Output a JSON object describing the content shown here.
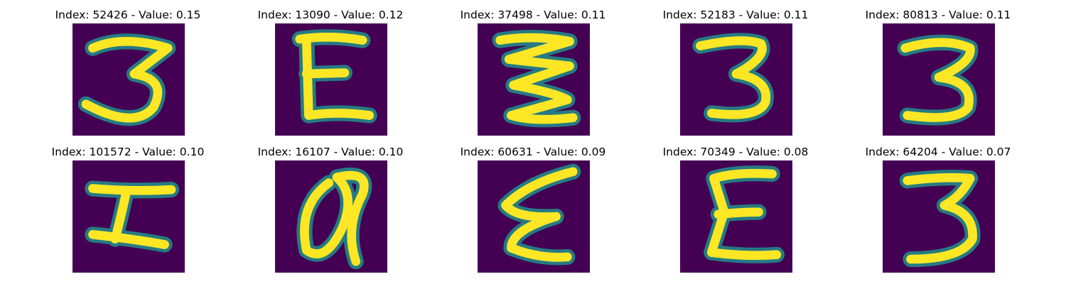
{
  "figure": {
    "panels": [
      {
        "title": "Index: 52426 - Value: 0.15",
        "digit": "3"
      },
      {
        "title": "Index: 13090 - Value: 0.12",
        "digit": "E"
      },
      {
        "title": "Index: 37498 - Value: 0.11",
        "digit": "3"
      },
      {
        "title": "Index: 52183 - Value: 0.11",
        "digit": "3"
      },
      {
        "title": "Index: 80813 - Value: 0.11",
        "digit": "3"
      },
      {
        "title": "Index: 101572 - Value: 0.10",
        "digit": "I"
      },
      {
        "title": "Index: 16107 - Value: 0.10",
        "digit": "a"
      },
      {
        "title": "Index: 60631 - Value: 0.09",
        "digit": "3"
      },
      {
        "title": "Index: 70349 - Value: 0.08",
        "digit": "E"
      },
      {
        "title": "Index: 64204 - Value: 0.07",
        "digit": "3"
      }
    ],
    "colors": {
      "background": "#440154",
      "stroke_edge": "#21918c",
      "stroke_core": "#fde725"
    }
  }
}
